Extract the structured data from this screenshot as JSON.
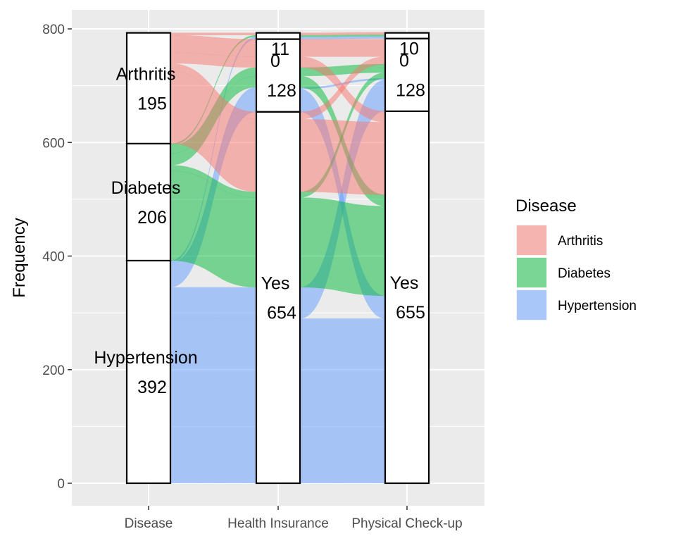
{
  "chart_data": {
    "type": "alluvial",
    "title": "",
    "xlabel": "",
    "ylabel": "Frequency",
    "ylim": [
      0,
      800
    ],
    "yticks": [
      0,
      200,
      400,
      600,
      800
    ],
    "axes": [
      "Disease",
      "Health Insurance",
      "Physical Check-up"
    ],
    "legend": {
      "title": "Disease",
      "position": "right",
      "entries": [
        {
          "name": "Arthritis",
          "color": "#F8766D"
        },
        {
          "name": "Diabetes",
          "color": "#00BA38"
        },
        {
          "name": "Hypertension",
          "color": "#619CFF"
        }
      ]
    },
    "strata": [
      [
        {
          "name": "Hypertension",
          "count": "392",
          "value": 392
        },
        {
          "name": "Diabetes",
          "count": "206",
          "value": 206
        },
        {
          "name": "Arthritis",
          "count": "195",
          "value": 195
        }
      ],
      [
        {
          "name": "Yes",
          "count": "654",
          "value": 654
        },
        {
          "name": "0",
          "count": "128",
          "value": 128
        },
        {
          "name": "",
          "count": "11",
          "value": 11
        }
      ],
      [
        {
          "name": "Yes",
          "count": "655",
          "value": 655
        },
        {
          "name": "0",
          "count": "128",
          "value": 128
        },
        {
          "name": "",
          "count": "10",
          "value": 10
        }
      ]
    ],
    "flows": [
      {
        "disease": "Hypertension",
        "path": [
          0,
          0,
          0
        ],
        "value": 290
      },
      {
        "disease": "Hypertension",
        "path": [
          0,
          0,
          1
        ],
        "value": 55
      },
      {
        "disease": "Hypertension",
        "path": [
          0,
          1,
          0
        ],
        "value": 40
      },
      {
        "disease": "Hypertension",
        "path": [
          0,
          1,
          1
        ],
        "value": 3
      },
      {
        "disease": "Hypertension",
        "path": [
          0,
          2,
          2
        ],
        "value": 4
      },
      {
        "disease": "Diabetes",
        "path": [
          0,
          0,
          0
        ],
        "value": 158
      },
      {
        "disease": "Diabetes",
        "path": [
          0,
          0,
          1
        ],
        "value": 10
      },
      {
        "disease": "Diabetes",
        "path": [
          0,
          1,
          0
        ],
        "value": 20
      },
      {
        "disease": "Diabetes",
        "path": [
          0,
          1,
          1
        ],
        "value": 15
      },
      {
        "disease": "Diabetes",
        "path": [
          0,
          2,
          2
        ],
        "value": 3
      },
      {
        "disease": "Arthritis",
        "path": [
          0,
          0,
          0
        ],
        "value": 128
      },
      {
        "disease": "Arthritis",
        "path": [
          0,
          0,
          1
        ],
        "value": 13
      },
      {
        "disease": "Arthritis",
        "path": [
          0,
          1,
          0
        ],
        "value": 19
      },
      {
        "disease": "Arthritis",
        "path": [
          0,
          1,
          1
        ],
        "value": 31
      },
      {
        "disease": "Arthritis",
        "path": [
          0,
          2,
          2
        ],
        "value": 4
      }
    ]
  }
}
